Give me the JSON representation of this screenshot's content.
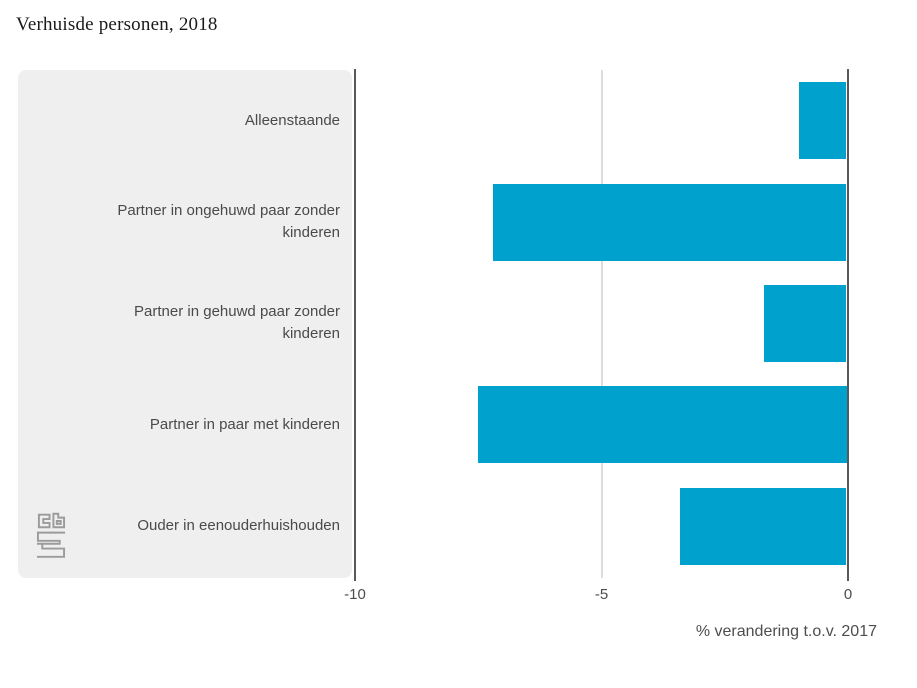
{
  "chart_data": {
    "type": "bar",
    "orientation": "horizontal",
    "title": "Verhuisde personen, 2018",
    "xlabel": "% verandering t.o.v. 2017",
    "categories": [
      "Alleenstaande",
      "Partner in ongehuwd paar zonder kinderen",
      "Partner in gehuwd paar zonder kinderen",
      "Partner in paar met kinderen",
      "Ouder in eenouderhuishouden"
    ],
    "values": [
      -1.0,
      -7.2,
      -1.7,
      -7.5,
      -3.4
    ],
    "xlim": [
      -10,
      0
    ],
    "xticks": [
      {
        "value": -10,
        "label": "-10",
        "emphasis": true
      },
      {
        "value": -5,
        "label": "-5",
        "emphasis": false
      },
      {
        "value": 0,
        "label": "0",
        "emphasis": true
      }
    ],
    "grid": "vertical",
    "legend": "none",
    "bar_color": "#00a1cd"
  },
  "branding": {
    "logo_icon": "cbs-logo"
  },
  "colors": {
    "bar": "#00a1cd",
    "panel_background": "#efefef",
    "axis_line": "#58595b",
    "gridline": "#dcdcdc",
    "label_text": "#4a4a4a",
    "tick_text": "#4d4d4d",
    "title_text": "#1a1a1a",
    "logo": "#9b9b9b"
  }
}
